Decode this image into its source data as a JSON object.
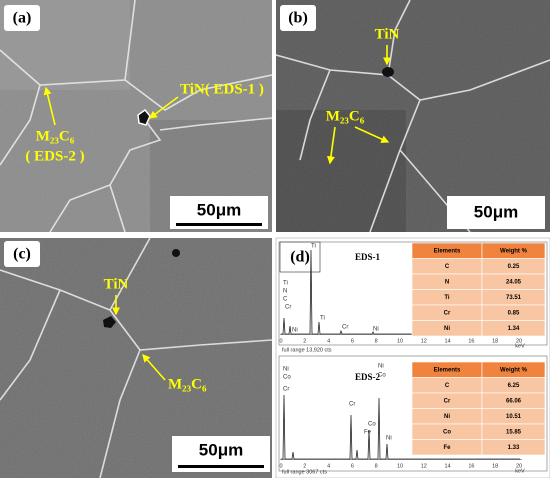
{
  "panels": [
    {
      "label": "(a)",
      "annotations": [
        "TiN( EDS-1 )",
        "M₂₃C₆",
        "( EDS-2 )"
      ],
      "scale_bar": "50μm"
    },
    {
      "label": "(b)",
      "annotations": [
        "TiN",
        "M₂₃C₆"
      ],
      "scale_bar": "50μm"
    },
    {
      "label": "(c)",
      "annotations": [
        "TiN",
        "M₂₃C₆"
      ],
      "scale_bar": "50μm"
    },
    {
      "label": "(d)"
    }
  ],
  "eds": [
    {
      "title": "EDS-1",
      "range": "full range 13,920 cts",
      "peaks": [
        "Ti",
        "Ti",
        "N",
        "C",
        "Cr",
        "Ni",
        "Ti",
        "Cr",
        "Ni"
      ],
      "table": {
        "header": [
          "Elements",
          "Weight %"
        ],
        "rows": [
          [
            "C",
            0.25
          ],
          [
            "N",
            24.05
          ],
          [
            "Ti",
            73.51
          ],
          [
            "Cr",
            0.85
          ],
          [
            "Ni",
            1.34
          ]
        ]
      }
    },
    {
      "title": "EDS-2",
      "range": "full range 3067 cts",
      "peaks": [
        "Ni",
        "Co",
        "Cr",
        "Cr",
        "Ni",
        "Co",
        "Co",
        "Fe",
        "Ni"
      ],
      "table": {
        "header": [
          "Elements",
          "Weight %"
        ],
        "rows": [
          [
            "C",
            6.25
          ],
          [
            "Cr",
            66.06
          ],
          [
            "Ni",
            10.51
          ],
          [
            "Co",
            15.85
          ],
          [
            "Fe",
            1.33
          ]
        ]
      }
    }
  ],
  "axis": {
    "ticks": [
      "0",
      "2",
      "4",
      "6",
      "8",
      "10",
      "12",
      "14",
      "16",
      "18",
      "20"
    ],
    "unit": "keV"
  }
}
